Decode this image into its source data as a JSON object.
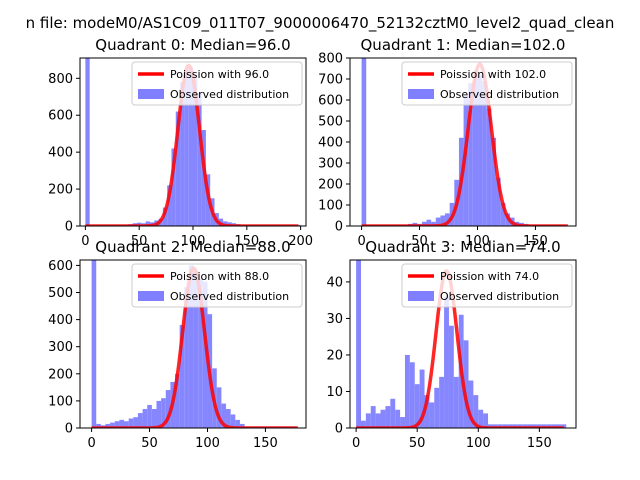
{
  "suptitle": "n file: modeM0/AS1C09_011T07_9000006470_52132cztM0_level2_quad_clean",
  "colors": {
    "hist": "#7f7fff",
    "fit": "#ff0000",
    "fit_alpha_halo": "#ffaaaa"
  },
  "chart_data": [
    {
      "type": "bar+line",
      "title": "Quadrant 0: Median=96.0",
      "median": 96.0,
      "legend": [
        "Poission with 96.0",
        "Observed distribution"
      ],
      "legend_loc": "upper right",
      "xlim": [
        -5,
        205
      ],
      "ylim": [
        0,
        910
      ],
      "xticks": [
        0,
        50,
        100,
        150,
        200
      ],
      "yticks": [
        0,
        200,
        400,
        600,
        800
      ],
      "peak": 870,
      "sigma": 10,
      "bin_width": 4,
      "bins": [
        [
          0,
          910
        ],
        [
          4,
          5
        ],
        [
          8,
          5
        ],
        [
          12,
          5
        ],
        [
          16,
          5
        ],
        [
          20,
          5
        ],
        [
          24,
          5
        ],
        [
          28,
          5
        ],
        [
          32,
          5
        ],
        [
          36,
          5
        ],
        [
          40,
          10
        ],
        [
          44,
          15
        ],
        [
          48,
          18
        ],
        [
          52,
          15
        ],
        [
          56,
          25
        ],
        [
          60,
          20
        ],
        [
          64,
          30
        ],
        [
          68,
          40
        ],
        [
          72,
          100
        ],
        [
          76,
          220
        ],
        [
          80,
          420
        ],
        [
          84,
          620
        ],
        [
          88,
          780
        ],
        [
          92,
          850
        ],
        [
          96,
          860
        ],
        [
          100,
          820
        ],
        [
          104,
          720
        ],
        [
          108,
          520
        ],
        [
          112,
          280
        ],
        [
          116,
          150
        ],
        [
          120,
          70
        ],
        [
          124,
          40
        ],
        [
          128,
          25
        ],
        [
          132,
          20
        ],
        [
          136,
          15
        ],
        [
          140,
          10
        ],
        [
          144,
          5
        ],
        [
          148,
          5
        ],
        [
          152,
          5
        ],
        [
          156,
          5
        ],
        [
          160,
          5
        ],
        [
          164,
          5
        ],
        [
          168,
          5
        ],
        [
          172,
          5
        ],
        [
          176,
          5
        ],
        [
          180,
          5
        ],
        [
          184,
          5
        ],
        [
          188,
          5
        ],
        [
          192,
          5
        ],
        [
          196,
          5
        ]
      ],
      "fit_x_range": [
        0,
        198
      ]
    },
    {
      "type": "bar+line",
      "title": "Quadrant 1: Median=102.0",
      "median": 102.0,
      "legend": [
        "Poission with 102.0",
        "Observed distribution"
      ],
      "legend_loc": "upper right",
      "xlim": [
        -10,
        185
      ],
      "ylim": [
        0,
        800
      ],
      "xticks": [
        0,
        50,
        100,
        150
      ],
      "yticks": [
        0,
        100,
        200,
        300,
        400,
        500,
        600,
        700,
        800
      ],
      "peak": 770,
      "sigma": 10,
      "bin_width": 4,
      "bins": [
        [
          0,
          800
        ],
        [
          4,
          5
        ],
        [
          8,
          5
        ],
        [
          12,
          5
        ],
        [
          16,
          5
        ],
        [
          20,
          5
        ],
        [
          24,
          5
        ],
        [
          28,
          5
        ],
        [
          32,
          5
        ],
        [
          36,
          5
        ],
        [
          40,
          10
        ],
        [
          44,
          15
        ],
        [
          48,
          10
        ],
        [
          52,
          20
        ],
        [
          56,
          30
        ],
        [
          60,
          20
        ],
        [
          64,
          40
        ],
        [
          68,
          50
        ],
        [
          72,
          60
        ],
        [
          76,
          110
        ],
        [
          80,
          220
        ],
        [
          84,
          420
        ],
        [
          88,
          620
        ],
        [
          92,
          680
        ],
        [
          96,
          740
        ],
        [
          100,
          720
        ],
        [
          104,
          690
        ],
        [
          108,
          560
        ],
        [
          112,
          420
        ],
        [
          116,
          230
        ],
        [
          120,
          110
        ],
        [
          124,
          60
        ],
        [
          128,
          40
        ],
        [
          132,
          20
        ],
        [
          136,
          15
        ],
        [
          140,
          10
        ],
        [
          144,
          5
        ],
        [
          148,
          5
        ],
        [
          152,
          5
        ],
        [
          156,
          5
        ],
        [
          160,
          5
        ],
        [
          164,
          5
        ],
        [
          168,
          5
        ],
        [
          172,
          5
        ]
      ],
      "fit_x_range": [
        0,
        178
      ]
    },
    {
      "type": "bar+line",
      "title": "Quadrant 2: Median=88.0",
      "median": 88.0,
      "legend": [
        "Poission with 88.0",
        "Observed distribution"
      ],
      "legend_loc": "upper right",
      "xlim": [
        -10,
        185
      ],
      "ylim": [
        0,
        620
      ],
      "xticks": [
        0,
        50,
        100,
        150
      ],
      "yticks": [
        0,
        100,
        200,
        300,
        400,
        500,
        600
      ],
      "peak": 590,
      "sigma": 9.4,
      "bin_width": 4,
      "bins": [
        [
          0,
          620
        ],
        [
          4,
          15
        ],
        [
          8,
          10
        ],
        [
          12,
          15
        ],
        [
          16,
          20
        ],
        [
          20,
          25
        ],
        [
          24,
          30
        ],
        [
          28,
          25
        ],
        [
          32,
          35
        ],
        [
          36,
          40
        ],
        [
          40,
          55
        ],
        [
          44,
          70
        ],
        [
          48,
          85
        ],
        [
          52,
          70
        ],
        [
          56,
          100
        ],
        [
          60,
          110
        ],
        [
          64,
          140
        ],
        [
          68,
          170
        ],
        [
          72,
          200
        ],
        [
          76,
          380
        ],
        [
          80,
          520
        ],
        [
          84,
          600
        ],
        [
          88,
          580
        ],
        [
          92,
          550
        ],
        [
          96,
          540
        ],
        [
          100,
          420
        ],
        [
          104,
          220
        ],
        [
          108,
          150
        ],
        [
          112,
          90
        ],
        [
          116,
          70
        ],
        [
          120,
          50
        ],
        [
          124,
          30
        ],
        [
          128,
          15
        ],
        [
          132,
          5
        ],
        [
          136,
          5
        ],
        [
          140,
          5
        ],
        [
          144,
          5
        ],
        [
          148,
          5
        ],
        [
          152,
          5
        ],
        [
          156,
          5
        ],
        [
          160,
          5
        ],
        [
          164,
          5
        ],
        [
          168,
          5
        ],
        [
          172,
          5
        ]
      ],
      "fit_x_range": [
        0,
        178
      ]
    },
    {
      "type": "bar+line",
      "title": "Quadrant 3: Median=74.0",
      "median": 74.0,
      "legend": [
        "Poission with 74.0",
        "Observed distribution"
      ],
      "legend_loc": "upper right",
      "xlim": [
        -5,
        180
      ],
      "ylim": [
        0,
        46
      ],
      "xticks": [
        0,
        50,
        100,
        150
      ],
      "yticks": [
        0,
        10,
        20,
        30,
        40
      ],
      "peak": 43,
      "sigma": 8.6,
      "bin_width": 4,
      "bins": [
        [
          0,
          46
        ],
        [
          4,
          2
        ],
        [
          8,
          4
        ],
        [
          12,
          6
        ],
        [
          16,
          4
        ],
        [
          20,
          5
        ],
        [
          24,
          6
        ],
        [
          28,
          8
        ],
        [
          32,
          5
        ],
        [
          36,
          3
        ],
        [
          40,
          20
        ],
        [
          44,
          18
        ],
        [
          48,
          12
        ],
        [
          52,
          16
        ],
        [
          56,
          9
        ],
        [
          60,
          7
        ],
        [
          64,
          11
        ],
        [
          68,
          14
        ],
        [
          72,
          36
        ],
        [
          76,
          28
        ],
        [
          80,
          14
        ],
        [
          84,
          31
        ],
        [
          88,
          24
        ],
        [
          92,
          13
        ],
        [
          96,
          9
        ],
        [
          100,
          5
        ],
        [
          104,
          4
        ],
        [
          108,
          1
        ],
        [
          112,
          1
        ],
        [
          116,
          1
        ],
        [
          120,
          1
        ],
        [
          124,
          1
        ],
        [
          128,
          1
        ],
        [
          132,
          1
        ],
        [
          136,
          1
        ],
        [
          140,
          1
        ],
        [
          144,
          1
        ],
        [
          148,
          1
        ],
        [
          152,
          1
        ],
        [
          156,
          1
        ],
        [
          160,
          1
        ],
        [
          164,
          1
        ],
        [
          168,
          1
        ]
      ],
      "fit_x_range": [
        0,
        170
      ]
    }
  ]
}
